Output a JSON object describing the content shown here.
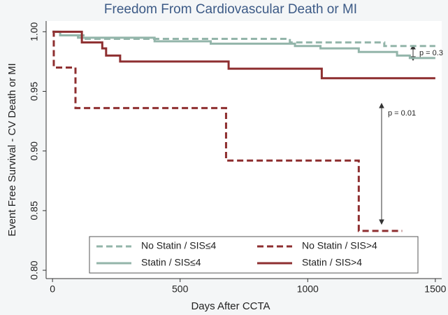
{
  "chart_data": {
    "type": "line",
    "step": "post",
    "title": "Freedom From Cardiovascular Death or MI",
    "xlabel": "Days After CCTA",
    "ylabel": "Event Free Survival - CV Death or MI",
    "xlim": [
      -25,
      1525
    ],
    "ylim": [
      0.793,
      1.009
    ],
    "xticks": [
      0,
      500,
      1000,
      1500
    ],
    "yticks": [
      {
        "value": 1,
        "label": "1.00"
      },
      0.95,
      {
        "value": 0.9,
        "label": "0.90"
      },
      0.85,
      {
        "value": 0.8,
        "label": "0.80"
      }
    ],
    "legend": "lower center",
    "series": [
      {
        "name": "No Statin / SIS≤4",
        "color": "#93b5aa",
        "dash": true,
        "x": [
          0,
          30,
          130,
          930,
          1300,
          1500
        ],
        "values": [
          1.0,
          0.997,
          0.994,
          0.991,
          0.988,
          0.988
        ]
      },
      {
        "name": "No Statin / SIS>4",
        "color": "#8e2f30",
        "dash": true,
        "x": [
          0,
          5,
          90,
          680,
          1200,
          1370
        ],
        "values": [
          1.0,
          0.97,
          0.936,
          0.892,
          0.833,
          0.833
        ]
      },
      {
        "name": "Statin / SIS≤4",
        "color": "#93b5aa",
        "dash": false,
        "x": [
          0,
          30,
          100,
          400,
          620,
          950,
          1050,
          1200,
          1350,
          1400,
          1500
        ],
        "values": [
          1.0,
          0.997,
          0.995,
          0.992,
          0.99,
          0.988,
          0.986,
          0.983,
          0.98,
          0.978,
          0.978
        ]
      },
      {
        "name": "Statin / SIS>4",
        "color": "#8e2f30",
        "dash": false,
        "x": [
          0,
          115,
          195,
          210,
          265,
          690,
          1055,
          1500
        ],
        "values": [
          1.0,
          0.991,
          0.986,
          0.98,
          0.975,
          0.969,
          0.961,
          0.961
        ]
      }
    ],
    "annotations": [
      "p = 0.3",
      "p = 0.01"
    ]
  }
}
